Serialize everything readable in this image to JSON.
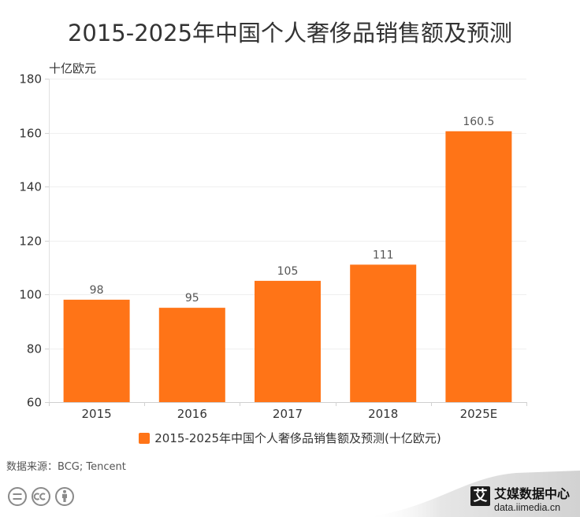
{
  "chart_data": {
    "type": "bar",
    "title": "2015-2025年中国个人奢侈品销售额及预测",
    "xlabel": "",
    "ylabel": "十亿欧元",
    "categories": [
      "2015",
      "2016",
      "2017",
      "2018",
      "2025E"
    ],
    "series": [
      {
        "name": "2015-2025年中国个人奢侈品销售额及预测(十亿欧元)",
        "values": [
          98,
          95,
          105,
          111,
          160.5
        ],
        "color": "#FF7417"
      }
    ],
    "ylim": [
      60,
      180
    ],
    "yticks": [
      60,
      80,
      100,
      120,
      140,
      160,
      180
    ],
    "grid": true,
    "data_labels": true,
    "legend": "bottom-center"
  },
  "source": "数据来源：BCG; Tencent",
  "logo": {
    "mark": "艾",
    "name": "艾媒数据中心",
    "url": "data.iimedia.cn"
  },
  "license_icons": [
    "cc-equal-icon",
    "cc-icon",
    "cc-by-icon"
  ],
  "colors": {
    "bar": "#FF7417",
    "title": "#333333"
  }
}
